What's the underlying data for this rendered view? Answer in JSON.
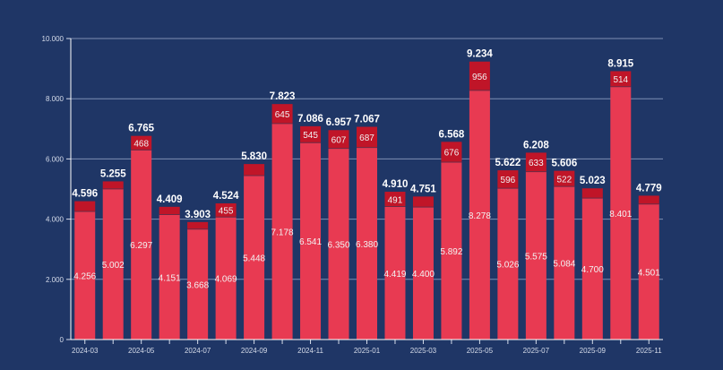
{
  "chart_data": {
    "type": "bar",
    "stacked": true,
    "title": "",
    "xlabel": "",
    "ylabel": "",
    "ylim": [
      0,
      10000
    ],
    "grid": true,
    "legend": "none",
    "yticks": [
      0,
      2000,
      4000,
      6000,
      8000,
      10000
    ],
    "ytick_labels": [
      "0",
      "2.000",
      "4.000",
      "6.000",
      "8.000",
      "10.000"
    ],
    "categories": [
      "2024-03",
      "2024-04",
      "2024-05",
      "2024-06",
      "2024-07",
      "2024-08",
      "2024-09",
      "2024-10",
      "2024-11",
      "2024-12",
      "2025-01",
      "2025-02",
      "2025-03",
      "2025-04",
      "2025-05",
      "2025-06",
      "2025-07",
      "2025-08",
      "2025-09",
      "2025-10",
      "2025-11"
    ],
    "xtick_labels": [
      "2024-03",
      "",
      "2024-05",
      "",
      "2024-07",
      "",
      "2024-09",
      "",
      "2024-11",
      "",
      "2025-01",
      "",
      "2025-03",
      "",
      "2025-05",
      "",
      "2025-07",
      "",
      "2025-09",
      "",
      "2025-11"
    ],
    "series": [
      {
        "name": "base",
        "color": "#e83a52",
        "values": [
          4256,
          5002,
          6297,
          4151,
          3668,
          4069,
          5448,
          7178,
          6541,
          6350,
          6380,
          4419,
          4400,
          5892,
          8278,
          5026,
          5575,
          5084,
          4700,
          8401,
          4501
        ]
      },
      {
        "name": "top",
        "color": "#c01528",
        "values": [
          340,
          253,
          468,
          258,
          235,
          455,
          382,
          645,
          545,
          607,
          687,
          491,
          351,
          676,
          956,
          596,
          633,
          522,
          323,
          514,
          278
        ]
      }
    ],
    "totals": [
      4596,
      5255,
      6765,
      4409,
      3903,
      4524,
      5830,
      7823,
      7086,
      6957,
      7067,
      4910,
      4751,
      6568,
      9234,
      5622,
      6208,
      5606,
      5023,
      8915,
      4779
    ],
    "total_labels": [
      "4.596",
      "5.255",
      "6.765",
      "4.409",
      "3.903",
      "4.524",
      "5.830",
      "7.823",
      "7.086",
      "6.957",
      "7.067",
      "4.910",
      "4.751",
      "6.568",
      "9.234",
      "5.622",
      "6.208",
      "5.606",
      "5.023",
      "8.915",
      "4.779"
    ],
    "base_labels": [
      "4.256",
      "5.002",
      "6.297",
      "4.151",
      "3.668",
      "4.069",
      "5.448",
      "7.178",
      "6.541",
      "6.350",
      "6.380",
      "4.419",
      "4.400",
      "5.892",
      "8.278",
      "5.026",
      "5.575",
      "5.084",
      "4.700",
      "8.401",
      "4.501"
    ],
    "top_labels": [
      "",
      "",
      "468",
      "",
      "",
      "455",
      "",
      "645",
      "545",
      "607",
      "687",
      "491",
      "",
      "676",
      "956",
      "596",
      "633",
      "522",
      "",
      "514",
      ""
    ]
  }
}
